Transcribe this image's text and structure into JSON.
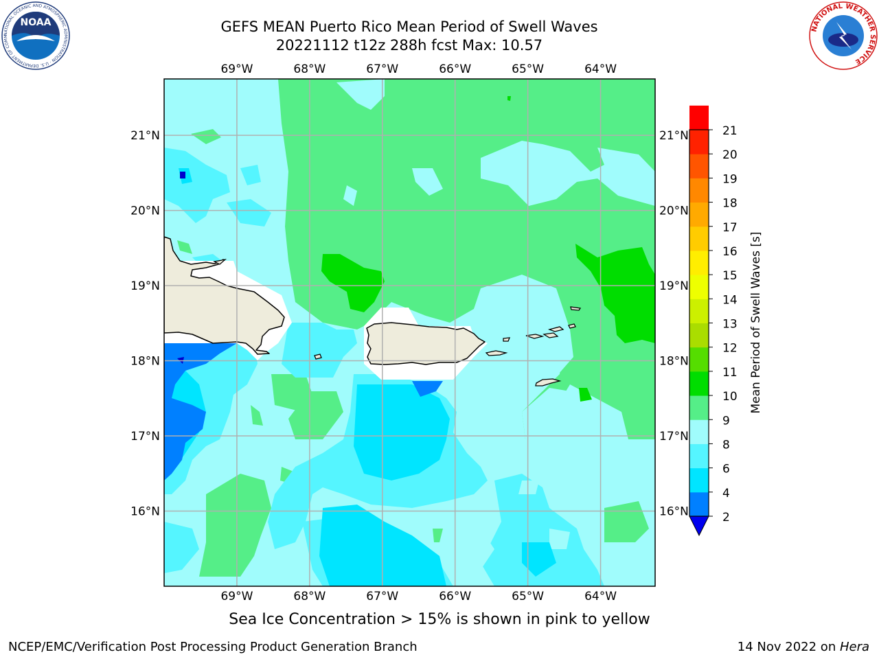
{
  "header": {
    "title_line1": "GEFS MEAN Puerto Rico Mean Period of Swell Waves",
    "title_line2": "20221112 t12z 288h fcst   Max: 10.57"
  },
  "logos": {
    "left": {
      "icon": "noaa-logo",
      "text": "NOAA",
      "ring_text": "NATIONAL OCEANIC AND ATMOSPHERIC ADMINISTRATION · U.S. DEPARTMENT OF COMMERCE"
    },
    "right": {
      "icon": "nws-logo",
      "ring_text": "NATIONAL WEATHER SERVICE"
    }
  },
  "map": {
    "lon_ticks": [
      "69°W",
      "68°W",
      "67°W",
      "66°W",
      "65°W",
      "64°W"
    ],
    "lat_ticks": [
      "21°N",
      "20°N",
      "19°N",
      "18°N",
      "17°N",
      "16°N"
    ],
    "lon_values": [
      -69,
      -68,
      -67,
      -66,
      -65,
      -64
    ],
    "lat_values": [
      21,
      20,
      19,
      18,
      17,
      16
    ],
    "extent": {
      "lon_min": -70,
      "lon_max": -63.25,
      "lat_min": 15.0,
      "lat_max": 21.75
    },
    "land_color": "#eeecdc",
    "grid": true
  },
  "colorbar": {
    "label": "Mean Period of Swell Waves [s]",
    "tick_labels": [
      "2",
      "4",
      "6",
      "8",
      "9",
      "10",
      "11",
      "12",
      "13",
      "14",
      "15",
      "16",
      "17",
      "18",
      "19",
      "20",
      "21"
    ],
    "extend_min_color": "#0000ee",
    "colors": [
      "#0080ff",
      "#00e5ff",
      "#55f5ff",
      "#a0fcfc",
      "#55ee88",
      "#00dd00",
      "#55dd00",
      "#aadd00",
      "#ccf000",
      "#eeff00",
      "#ffee00",
      "#ffcc00",
      "#ffaa00",
      "#ff8800",
      "#ff5500",
      "#ff2200",
      "#ff0000"
    ]
  },
  "chart_data": {
    "type": "heatmap",
    "title": "GEFS MEAN Puerto Rico Mean Period of Swell Waves",
    "variable": "Mean Period of Swell Waves [s]",
    "max": 10.57,
    "levels": [
      2,
      4,
      6,
      8,
      9,
      10,
      11,
      12,
      13,
      14,
      15,
      16,
      17,
      18,
      19,
      20,
      21
    ]
  },
  "notes": {
    "ice": "Sea Ice Concentration > 15% is shown in pink to yellow"
  },
  "footer": {
    "left": "NCEP/EMC/Verification Post Processing Product Generation Branch",
    "right_prefix": "14 Nov 2022 on ",
    "right_italic": "Hera"
  }
}
